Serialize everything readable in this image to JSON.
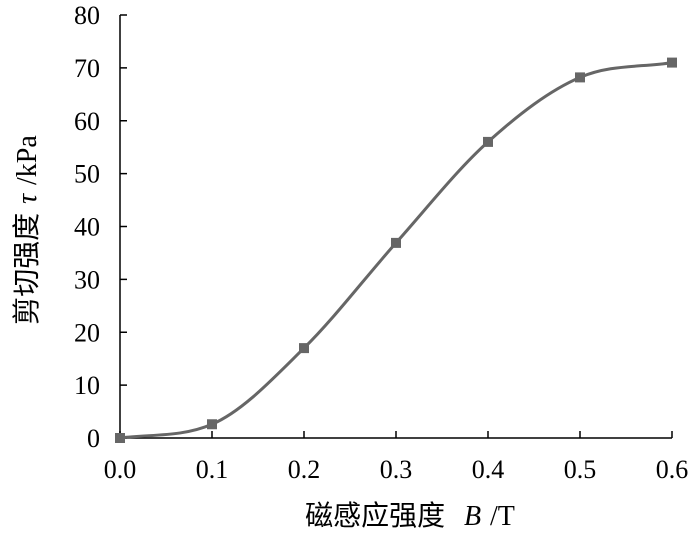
{
  "chart_data": {
    "type": "line",
    "title": "",
    "xlabel": "磁感应强度 B/T",
    "xlabel_parts": {
      "cn": "磁感应强度",
      "var": "B",
      "unit": "/T"
    },
    "ylabel": "剪切强度τ/kPa",
    "ylabel_parts": {
      "cn": "剪切强度",
      "var": "τ",
      "unit": "/kPa"
    },
    "xlim": [
      0.0,
      0.6
    ],
    "ylim": [
      0,
      80
    ],
    "x_ticks": [
      0.0,
      0.1,
      0.2,
      0.3,
      0.4,
      0.5,
      0.6
    ],
    "x_tick_labels": [
      "0.0",
      "0.1",
      "0.2",
      "0.3",
      "0.4",
      "0.5",
      "0.6"
    ],
    "y_ticks": [
      0,
      10,
      20,
      30,
      40,
      50,
      60,
      70,
      80
    ],
    "y_tick_labels": [
      "0",
      "10",
      "20",
      "30",
      "40",
      "50",
      "60",
      "70",
      "80"
    ],
    "grid": false,
    "legend": "none",
    "series_color": "#666666",
    "series": [
      {
        "x": [
          0.0,
          0.1,
          0.2,
          0.3,
          0.4,
          0.5,
          0.6
        ],
        "y": [
          0,
          2.6,
          17,
          36.9,
          56,
          68.2,
          71
        ]
      }
    ]
  }
}
